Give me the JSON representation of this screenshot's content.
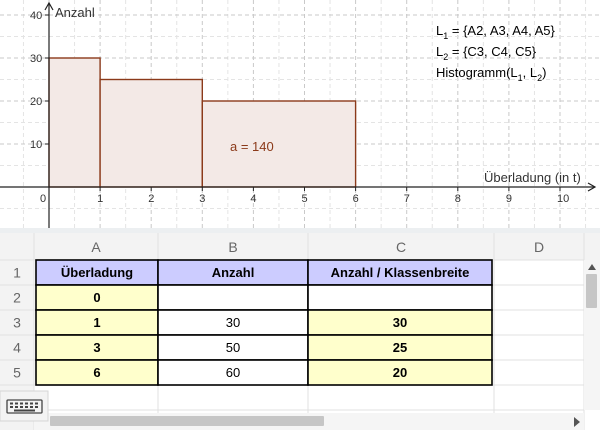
{
  "graphics": {
    "x_ticks": [
      "0",
      "1",
      "2",
      "3",
      "4",
      "5",
      "6",
      "7",
      "8",
      "9",
      "10"
    ],
    "y_ticks": [
      "10",
      "20",
      "30",
      "40"
    ],
    "y_axis_label": "Anzahl",
    "x_axis_label": "Überladung (in t)",
    "area_label": "a = 140",
    "info_lines": [
      {
        "base": "L",
        "sub": "1",
        "rest": " = {A2, A3, A4, A5}"
      },
      {
        "base": "L",
        "sub": "2",
        "rest": " = {C3, C4, C5}"
      },
      {
        "pre": "Histogramm(L",
        "sub1": "1",
        "mid": ", L",
        "sub2": "2",
        "post": ")"
      }
    ],
    "colors": {
      "bar_fill": "#f3e9e6",
      "bar_stroke": "#8b3a1a",
      "label": "#8b3a1a"
    }
  },
  "chart_data": {
    "type": "bar",
    "boundaries": [
      0,
      1,
      3,
      6
    ],
    "values": [
      30,
      25,
      20
    ],
    "xlabel": "Überladung (in t)",
    "ylabel": "Anzahl",
    "xlim": [
      0,
      10
    ],
    "ylim": [
      0,
      40
    ],
    "grid": true
  },
  "spreadsheet": {
    "columns": [
      "A",
      "B",
      "C",
      "D"
    ],
    "rows": [
      "1",
      "2",
      "3",
      "4",
      "5"
    ],
    "cells": [
      [
        "Überladung",
        "Anzahl",
        "Anzahl / Klassenbreite"
      ],
      [
        "0",
        "",
        ""
      ],
      [
        "1",
        "30",
        "30"
      ],
      [
        "3",
        "50",
        "25"
      ],
      [
        "6",
        "60",
        "20"
      ]
    ],
    "colors": {
      "header_fill": "#ccccff",
      "list1_fill": "#ffffcc",
      "list2_fill": "#ffffcc"
    }
  },
  "keyboard_button": {
    "icon": "keyboard-icon"
  }
}
